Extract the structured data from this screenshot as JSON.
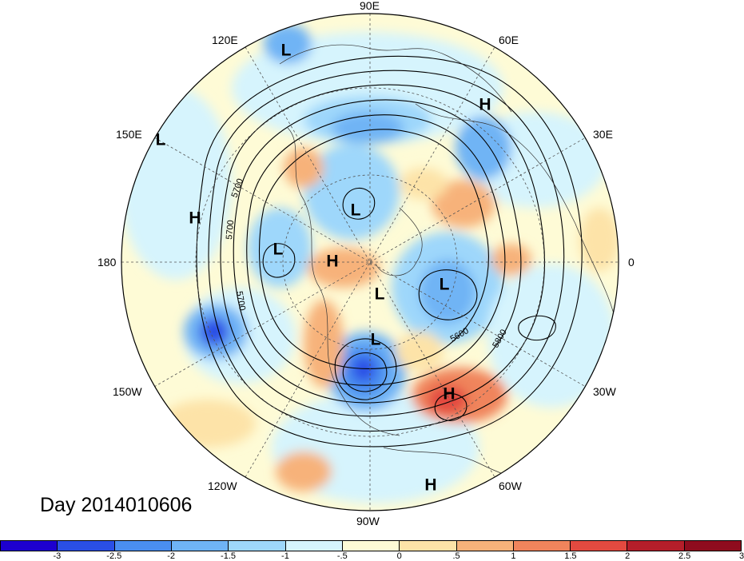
{
  "title": "Day 2014010606",
  "longitude_labels": [
    {
      "key": "90E",
      "text": "90E"
    },
    {
      "key": "60E",
      "text": "60E"
    },
    {
      "key": "30E",
      "text": "30E"
    },
    {
      "key": "0",
      "text": "0"
    },
    {
      "key": "30W",
      "text": "30W"
    },
    {
      "key": "60W",
      "text": "60W"
    },
    {
      "key": "90W",
      "text": "90W"
    },
    {
      "key": "120W",
      "text": "120W"
    },
    {
      "key": "150W",
      "text": "150W"
    },
    {
      "key": "180",
      "text": "180"
    },
    {
      "key": "150E",
      "text": "150E"
    },
    {
      "key": "120E",
      "text": "120E"
    }
  ],
  "pressure_centers": [
    {
      "type": "L"
    },
    {
      "type": "H"
    },
    {
      "type": "L"
    },
    {
      "type": "H"
    },
    {
      "type": "L"
    },
    {
      "type": "L"
    },
    {
      "type": "H"
    },
    {
      "type": "L"
    },
    {
      "type": "L"
    },
    {
      "type": "L"
    },
    {
      "type": "H"
    },
    {
      "type": "H"
    }
  ],
  "contour_labels": [
    "5700",
    "5700",
    "5700",
    "5600",
    "5800"
  ],
  "colorbar": {
    "colors": [
      "#1d00cf",
      "#2a4fe6",
      "#4a8ef0",
      "#6fb4f5",
      "#9ed7fb",
      "#d6f4fd",
      "#fefbd6",
      "#fde3a8",
      "#f7b27a",
      "#f0845c",
      "#e34a40",
      "#b51e2a",
      "#8f0c1e"
    ],
    "ticks": [
      "-3",
      "-2.5",
      "-2",
      "-1.5",
      "-1",
      "-.5",
      "0",
      ".5",
      "1",
      "1.5",
      "2",
      "2.5",
      "3"
    ]
  }
}
